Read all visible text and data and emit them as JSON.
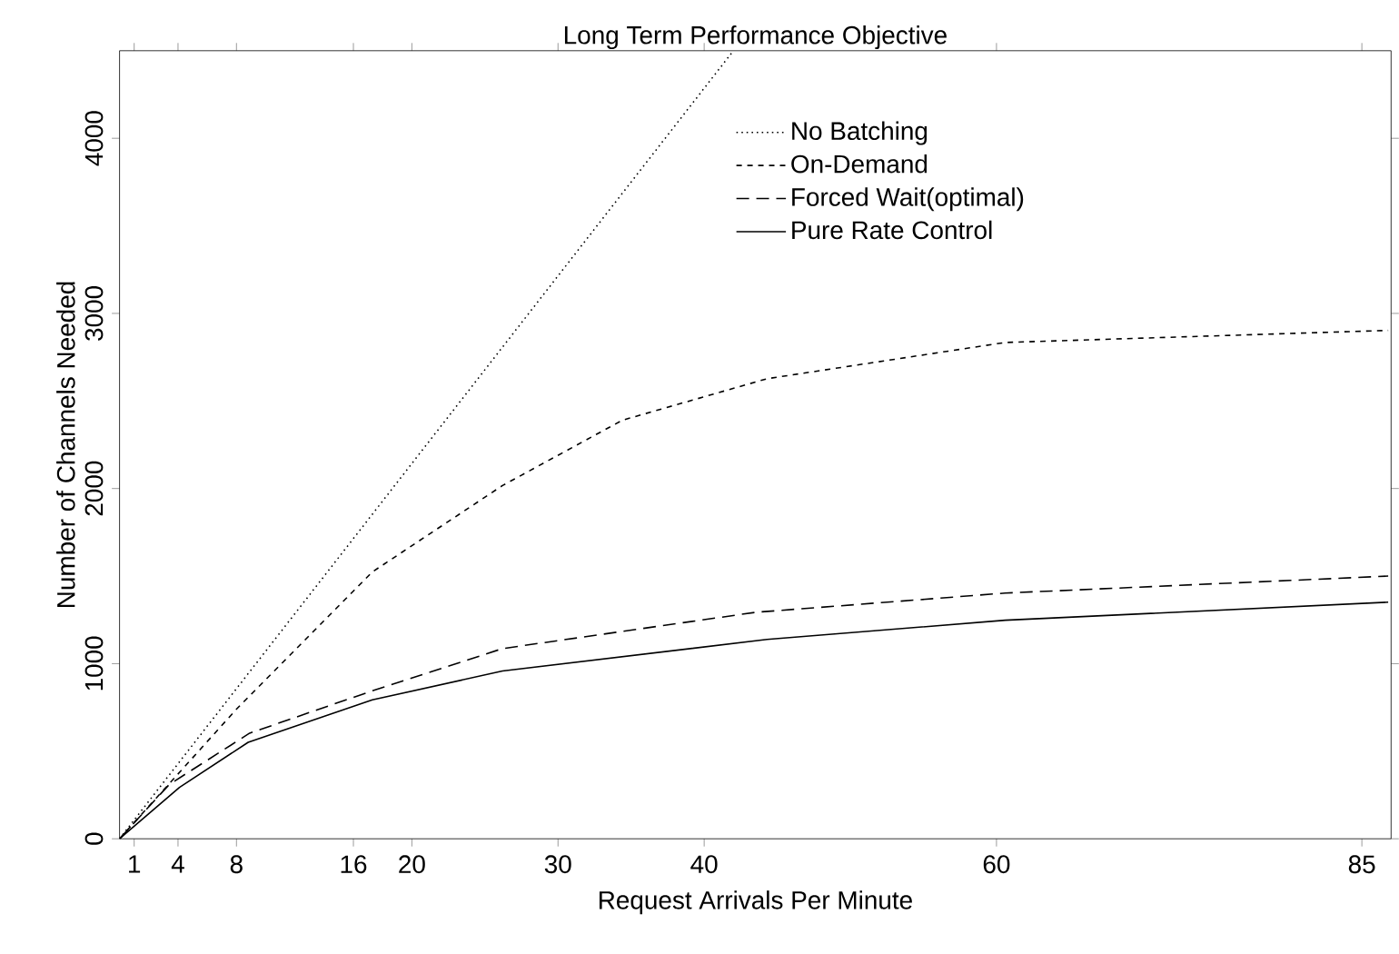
{
  "chart_data": {
    "type": "line",
    "title": "Long Term Performance Objective",
    "xlabel": "Request Arrivals Per Minute",
    "ylabel": "Number of Channels Needed",
    "xlim": [
      0,
      87
    ],
    "xticks": [
      1,
      4,
      8,
      16,
      20,
      30,
      40,
      60,
      85
    ],
    "ylim": [
      0,
      4500
    ],
    "yticks": [
      0,
      1000,
      2000,
      3000,
      4000
    ],
    "legend": "top right",
    "grid": false,
    "marker": "none",
    "series": [
      {
        "name": "No Batching",
        "color": "#000000",
        "line_style": "dotted",
        "x": [
          0,
          42
        ],
        "values": [
          0,
          4500
        ]
      },
      {
        "name": "On-Demand",
        "color": "#000000",
        "line_style": "dashed",
        "x": [
          0,
          8,
          17.3,
          26.2,
          34.4,
          44.3,
          60.6,
          86.8
        ],
        "values": [
          0,
          740,
          1524,
          2017,
          2390,
          2627,
          2834,
          2903
        ]
      },
      {
        "name": "Forced Wait(optimal)",
        "color": "#000000",
        "line_style": "longdashed",
        "x": [
          0,
          3.4,
          8.9,
          17.3,
          26.2,
          43.5,
          60.6,
          86.8
        ],
        "values": [
          0,
          310,
          603,
          845,
          1086,
          1293,
          1403,
          1500
        ]
      },
      {
        "name": "Pure Rate Control",
        "color": "#000000",
        "line_style": "solid",
        "x": [
          0,
          4.1,
          8.8,
          17.3,
          26.2,
          44.3,
          60.6,
          86.8
        ],
        "values": [
          0,
          293,
          551,
          793,
          958,
          1138,
          1248,
          1351
        ]
      }
    ]
  }
}
